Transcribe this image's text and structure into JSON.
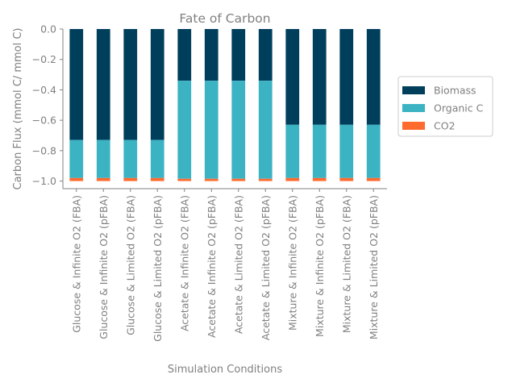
{
  "chart_data": {
    "type": "bar",
    "stacked": true,
    "title": "Fate of Carbon",
    "xlabel": "Simulation Conditions",
    "ylabel": "Carbon Flux (mmol C/ mmol C)",
    "ylim": [
      -1.05,
      0.0
    ],
    "yticks": [
      0.0,
      -0.2,
      -0.4,
      -0.6,
      -0.8,
      -1.0
    ],
    "ytick_labels": [
      "0.0",
      "−0.2",
      "−0.4",
      "−0.6",
      "−0.8",
      "−1.0"
    ],
    "grid": false,
    "legend_position": "right",
    "categories": [
      "Glucose & Infinite O2 (FBA)",
      "Glucose & Infinite O2 (pFBA)",
      "Glucose & Limited O2 (FBA)",
      "Glucose & Limited O2 (pFBA)",
      "Acetate & Infinite O2 (FBA)",
      "Acetate & Infinite O2 (pFBA)",
      "Acetate & Limited O2 (FBA)",
      "Acetate & Limited O2 (pFBA)",
      "Mixture & Infinite O2 (FBA)",
      "Mixture & Infinite O2 (pFBA)",
      "Mixture & Limited O2 (FBA)",
      "Mixture & Limited O2 (pFBA)"
    ],
    "series": [
      {
        "name": "Biomass",
        "color": "#003f5c",
        "values": [
          -0.73,
          -0.73,
          -0.73,
          -0.73,
          -0.34,
          -0.34,
          -0.34,
          -0.34,
          -0.63,
          -0.63,
          -0.63,
          -0.63
        ]
      },
      {
        "name": "Organic C",
        "color": "#3bb3c3",
        "values": [
          -0.25,
          -0.25,
          -0.25,
          -0.25,
          -0.645,
          -0.645,
          -0.645,
          -0.645,
          -0.35,
          -0.35,
          -0.35,
          -0.35
        ]
      },
      {
        "name": "CO2",
        "color": "#ff6a2f",
        "values": [
          -0.02,
          -0.02,
          -0.02,
          -0.02,
          -0.015,
          -0.015,
          -0.015,
          -0.015,
          -0.02,
          -0.02,
          -0.02,
          -0.02
        ]
      }
    ]
  }
}
